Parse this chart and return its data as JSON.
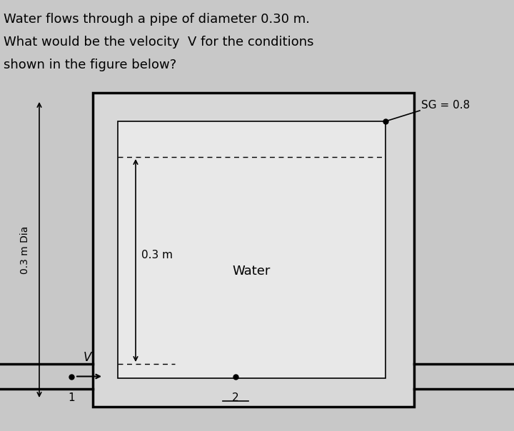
{
  "title_line1": "Water flows through a pipe of diameter 0.30 m.",
  "title_line2": "What would be the velocity  V for the conditions",
  "title_line3": "shown in the figure below?",
  "bg_color": "#c8c8c8",
  "text_color": "#000000",
  "sg_label": "SG = 0.8",
  "dim_label": "0.3 m",
  "water_label": "Water",
  "dia_label": "0.3 m Dia",
  "v_label": "V",
  "pt1_label": "1",
  "pt2_label": "2",
  "title_fontsize": 13,
  "label_fontsize": 11,
  "small_fontsize": 10
}
